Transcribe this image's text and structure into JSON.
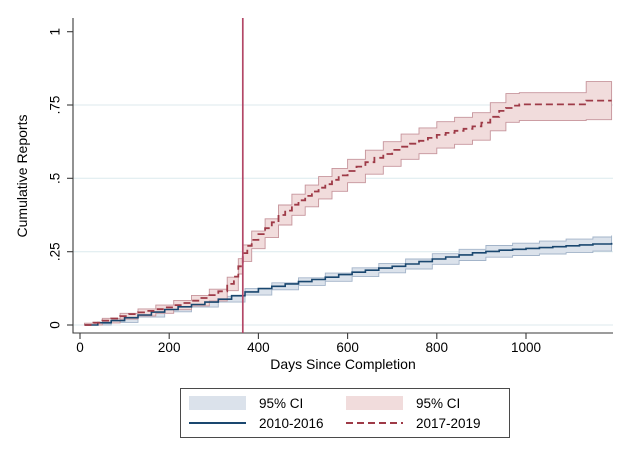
{
  "figure": {
    "background": "#ffffff"
  },
  "chart_data": {
    "type": "line",
    "subtype": "kaplan-meier-cumulative-incidence-steps-with-ci-bands",
    "title": "",
    "xlabel": "Days Since Completion",
    "ylabel": "Cumulative Reports",
    "xlim": [
      0,
      1192
    ],
    "ylim": [
      0,
      1
    ],
    "x_ticks": [
      0,
      200,
      400,
      600,
      800,
      1000
    ],
    "x_tick_labels": [
      "0",
      "200",
      "400",
      "600",
      "800",
      "1000"
    ],
    "y_ticks": [
      0,
      0.25,
      0.5,
      0.75,
      1
    ],
    "y_tick_labels": [
      "0",
      ".25",
      ".5",
      ".75",
      "1"
    ],
    "grid_y": [
      0,
      0.25,
      0.5,
      0.75
    ],
    "grid_color": "#dceaed",
    "axis_color": "#3a3a3a",
    "vline_x": 365,
    "vline_color": "#b34767",
    "legend_position": "bottom-center",
    "series": [
      {
        "name": "2010-2016",
        "style": "solid",
        "color": "#1a476f",
        "band_fill": "#dbe2eb",
        "band_edge": "#a3b4c9",
        "points": [
          [
            10,
            0
          ],
          [
            40,
            0.008
          ],
          [
            70,
            0.015
          ],
          [
            100,
            0.025
          ],
          [
            130,
            0.034
          ],
          [
            160,
            0.044
          ],
          [
            190,
            0.053
          ],
          [
            220,
            0.062
          ],
          [
            250,
            0.07
          ],
          [
            280,
            0.078
          ],
          [
            310,
            0.088
          ],
          [
            340,
            0.1
          ],
          [
            370,
            0.113
          ],
          [
            400,
            0.124
          ],
          [
            430,
            0.132
          ],
          [
            460,
            0.14
          ],
          [
            490,
            0.148
          ],
          [
            520,
            0.155
          ],
          [
            550,
            0.163
          ],
          [
            580,
            0.172
          ],
          [
            610,
            0.18
          ],
          [
            640,
            0.187
          ],
          [
            670,
            0.194
          ],
          [
            700,
            0.2
          ],
          [
            730,
            0.208
          ],
          [
            760,
            0.216
          ],
          [
            790,
            0.225
          ],
          [
            820,
            0.232
          ],
          [
            850,
            0.239
          ],
          [
            880,
            0.246
          ],
          [
            910,
            0.251
          ],
          [
            940,
            0.255
          ],
          [
            970,
            0.258
          ],
          [
            1000,
            0.261
          ],
          [
            1030,
            0.264
          ],
          [
            1060,
            0.267
          ],
          [
            1090,
            0.27
          ],
          [
            1120,
            0.273
          ],
          [
            1150,
            0.276
          ],
          [
            1192,
            0.28
          ]
        ],
        "ci": [
          [
            10,
            0,
            0.005
          ],
          [
            70,
            0.009,
            0.021
          ],
          [
            130,
            0.027,
            0.041
          ],
          [
            190,
            0.045,
            0.061
          ],
          [
            250,
            0.061,
            0.079
          ],
          [
            310,
            0.078,
            0.098
          ],
          [
            370,
            0.102,
            0.124
          ],
          [
            430,
            0.12,
            0.144
          ],
          [
            490,
            0.135,
            0.161
          ],
          [
            550,
            0.149,
            0.177
          ],
          [
            610,
            0.165,
            0.195
          ],
          [
            670,
            0.178,
            0.21
          ],
          [
            730,
            0.191,
            0.225
          ],
          [
            790,
            0.207,
            0.243
          ],
          [
            850,
            0.22,
            0.258
          ],
          [
            910,
            0.231,
            0.271
          ],
          [
            970,
            0.237,
            0.279
          ],
          [
            1030,
            0.242,
            0.286
          ],
          [
            1090,
            0.247,
            0.293
          ],
          [
            1150,
            0.252,
            0.3
          ],
          [
            1192,
            0.255,
            0.305
          ]
        ]
      },
      {
        "name": "2017-2019",
        "style": "dashed",
        "color": "#9e3a47",
        "band_fill": "#f1dcdc",
        "band_edge": "#c6949b",
        "points": [
          [
            10,
            0
          ],
          [
            30,
            0.008
          ],
          [
            50,
            0.015
          ],
          [
            70,
            0.022
          ],
          [
            90,
            0.03
          ],
          [
            110,
            0.037
          ],
          [
            130,
            0.043
          ],
          [
            150,
            0.048
          ],
          [
            170,
            0.054
          ],
          [
            190,
            0.06
          ],
          [
            210,
            0.068
          ],
          [
            230,
            0.075
          ],
          [
            250,
            0.083
          ],
          [
            270,
            0.092
          ],
          [
            290,
            0.102
          ],
          [
            310,
            0.115
          ],
          [
            330,
            0.14
          ],
          [
            345,
            0.165
          ],
          [
            355,
            0.2
          ],
          [
            365,
            0.245
          ],
          [
            375,
            0.27
          ],
          [
            385,
            0.29
          ],
          [
            400,
            0.31
          ],
          [
            415,
            0.33
          ],
          [
            430,
            0.35
          ],
          [
            445,
            0.375
          ],
          [
            460,
            0.39
          ],
          [
            475,
            0.41
          ],
          [
            490,
            0.425
          ],
          [
            505,
            0.44
          ],
          [
            520,
            0.455
          ],
          [
            535,
            0.468
          ],
          [
            550,
            0.48
          ],
          [
            565,
            0.495
          ],
          [
            580,
            0.51
          ],
          [
            600,
            0.525
          ],
          [
            620,
            0.54
          ],
          [
            640,
            0.555
          ],
          [
            660,
            0.57
          ],
          [
            680,
            0.583
          ],
          [
            700,
            0.597
          ],
          [
            720,
            0.608
          ],
          [
            740,
            0.618
          ],
          [
            760,
            0.628
          ],
          [
            780,
            0.638
          ],
          [
            800,
            0.648
          ],
          [
            820,
            0.655
          ],
          [
            840,
            0.662
          ],
          [
            860,
            0.669
          ],
          [
            880,
            0.677
          ],
          [
            900,
            0.69
          ],
          [
            920,
            0.71
          ],
          [
            940,
            0.73
          ],
          [
            955,
            0.74
          ],
          [
            970,
            0.748
          ],
          [
            985,
            0.752
          ],
          [
            1120,
            0.752
          ],
          [
            1135,
            0.765
          ],
          [
            1192,
            0.765
          ]
        ],
        "ci": [
          [
            10,
            0,
            0.006
          ],
          [
            50,
            0.007,
            0.023
          ],
          [
            90,
            0.02,
            0.04
          ],
          [
            130,
            0.031,
            0.055
          ],
          [
            170,
            0.04,
            0.068
          ],
          [
            210,
            0.052,
            0.084
          ],
          [
            250,
            0.065,
            0.101
          ],
          [
            290,
            0.082,
            0.122
          ],
          [
            330,
            0.117,
            0.163
          ],
          [
            355,
            0.174,
            0.226
          ],
          [
            365,
            0.217,
            0.273
          ],
          [
            385,
            0.26,
            0.32
          ],
          [
            415,
            0.298,
            0.362
          ],
          [
            445,
            0.341,
            0.409
          ],
          [
            475,
            0.374,
            0.446
          ],
          [
            505,
            0.403,
            0.477
          ],
          [
            535,
            0.43,
            0.506
          ],
          [
            565,
            0.456,
            0.534
          ],
          [
            600,
            0.485,
            0.565
          ],
          [
            640,
            0.514,
            0.596
          ],
          [
            680,
            0.541,
            0.625
          ],
          [
            720,
            0.565,
            0.651
          ],
          [
            760,
            0.584,
            0.672
          ],
          [
            800,
            0.603,
            0.693
          ],
          [
            840,
            0.616,
            0.708
          ],
          [
            880,
            0.63,
            0.724
          ],
          [
            920,
            0.662,
            0.758
          ],
          [
            955,
            0.691,
            0.789
          ],
          [
            985,
            0.697,
            0.792
          ],
          [
            1120,
            0.697,
            0.792
          ],
          [
            1135,
            0.7,
            0.83
          ],
          [
            1192,
            0.7,
            0.83
          ]
        ]
      }
    ]
  },
  "legend": {
    "entries": [
      {
        "type": "band",
        "color": "#dbe2eb",
        "label": "95% CI"
      },
      {
        "type": "band",
        "color": "#f1dcdc",
        "label": "95% CI"
      },
      {
        "type": "line_solid",
        "color": "#1a476f",
        "label": "2010-2016"
      },
      {
        "type": "line_dashed",
        "color": "#9e3a47",
        "label": "2017-2019"
      }
    ]
  }
}
